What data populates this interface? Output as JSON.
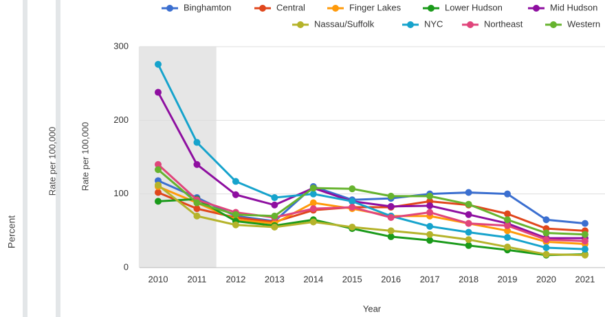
{
  "chart_data": {
    "type": "line",
    "side_labels": [
      "Percent",
      "Rate per 100,000",
      "Rate per 100,000"
    ],
    "xlabel": "Year",
    "categories": [
      "2010",
      "2011",
      "2012",
      "2013",
      "2014",
      "2015",
      "2016",
      "2017",
      "2018",
      "2019",
      "2020",
      "2021"
    ],
    "highlight": [
      "2010",
      "2011"
    ],
    "ylim": [
      0,
      300
    ],
    "yticks": [
      0,
      100,
      200,
      300
    ],
    "grid": true,
    "legend": "top-right",
    "series": [
      {
        "name": "Binghamton",
        "color": "#3b6fd0",
        "values": [
          118,
          95,
          70,
          63,
          110,
          92,
          94,
          100,
          102,
          100,
          65,
          60
        ]
      },
      {
        "name": "Central",
        "color": "#e0461c",
        "values": [
          102,
          80,
          68,
          62,
          78,
          82,
          82,
          90,
          85,
          73,
          53,
          50
        ]
      },
      {
        "name": "Finger Lakes",
        "color": "#ff9a0a",
        "values": [
          110,
          88,
          65,
          60,
          88,
          80,
          70,
          70,
          60,
          50,
          35,
          32
        ]
      },
      {
        "name": "Lower Hudson",
        "color": "#1a9a1a",
        "values": [
          90,
          93,
          63,
          57,
          65,
          53,
          42,
          37,
          30,
          24,
          17,
          18
        ]
      },
      {
        "name": "Mid Hudson",
        "color": "#8e0fa0",
        "values": [
          238,
          140,
          99,
          85,
          108,
          90,
          83,
          84,
          72,
          60,
          40,
          40
        ]
      },
      {
        "name": "Nassau/Suffolk",
        "color": "#b5b32a",
        "values": [
          112,
          70,
          58,
          55,
          62,
          55,
          50,
          45,
          38,
          28,
          18,
          17
        ]
      },
      {
        "name": "NYC",
        "color": "#16a3cc",
        "values": [
          276,
          170,
          117,
          95,
          100,
          90,
          70,
          56,
          48,
          41,
          27,
          25
        ]
      },
      {
        "name": "Northeast",
        "color": "#e0457b",
        "values": [
          140,
          92,
          75,
          68,
          80,
          82,
          68,
          75,
          60,
          57,
          38,
          36
        ]
      },
      {
        "name": "Western",
        "color": "#66b32e",
        "values": [
          133,
          88,
          72,
          70,
          108,
          107,
          97,
          97,
          86,
          65,
          47,
          45
        ]
      }
    ]
  }
}
